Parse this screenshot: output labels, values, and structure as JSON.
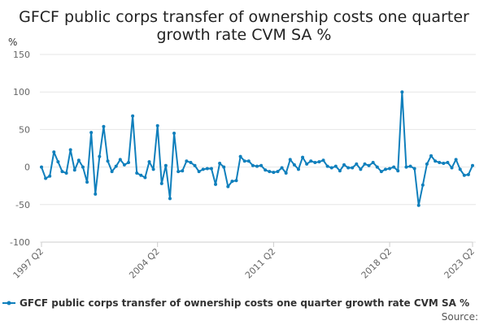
{
  "chart_data": {
    "type": "line",
    "title_lines": [
      "GFCF public corps transfer of ownership costs one quarter",
      "growth rate CVM SA %"
    ],
    "ylabel": "%",
    "ylim": [
      -100,
      150
    ],
    "yticks": [
      -100,
      -50,
      0,
      50,
      100,
      150
    ],
    "x_tick_labels": [
      {
        "label": "1997 Q2",
        "index": 0
      },
      {
        "label": "2004 Q2",
        "index": 28
      },
      {
        "label": "2011 Q2",
        "index": 56
      },
      {
        "label": "2018 Q2",
        "index": 84
      },
      {
        "label": "2023 Q2",
        "index": 104
      }
    ],
    "grid": true,
    "legend_position": "bottom",
    "series": [
      {
        "name": "GFCF public corps transfer of ownership costs one quarter growth rate CVM SA %",
        "color": "#0f7fbc",
        "x": [
          "1997 Q2",
          "1997 Q3",
          "1997 Q4",
          "1998 Q1",
          "1998 Q2",
          "1998 Q3",
          "1998 Q4",
          "1999 Q1",
          "1999 Q2",
          "1999 Q3",
          "1999 Q4",
          "2000 Q1",
          "2000 Q2",
          "2000 Q3",
          "2000 Q4",
          "2001 Q1",
          "2001 Q2",
          "2001 Q3",
          "2001 Q4",
          "2002 Q1",
          "2002 Q2",
          "2002 Q3",
          "2002 Q4",
          "2003 Q1",
          "2003 Q2",
          "2003 Q3",
          "2003 Q4",
          "2004 Q1",
          "2004 Q2",
          "2004 Q3",
          "2004 Q4",
          "2005 Q1",
          "2005 Q2",
          "2005 Q3",
          "2005 Q4",
          "2006 Q1",
          "2006 Q2",
          "2006 Q3",
          "2006 Q4",
          "2007 Q1",
          "2007 Q2",
          "2007 Q3",
          "2007 Q4",
          "2008 Q1",
          "2008 Q2",
          "2008 Q3",
          "2008 Q4",
          "2009 Q1",
          "2009 Q2",
          "2009 Q3",
          "2009 Q4",
          "2010 Q1",
          "2010 Q2",
          "2010 Q3",
          "2010 Q4",
          "2011 Q1",
          "2011 Q2",
          "2011 Q3",
          "2011 Q4",
          "2012 Q1",
          "2012 Q2",
          "2012 Q3",
          "2012 Q4",
          "2013 Q1",
          "2013 Q2",
          "2013 Q3",
          "2013 Q4",
          "2014 Q1",
          "2014 Q2",
          "2014 Q3",
          "2014 Q4",
          "2015 Q1",
          "2015 Q2",
          "2015 Q3",
          "2015 Q4",
          "2016 Q1",
          "2016 Q2",
          "2016 Q3",
          "2016 Q4",
          "2017 Q1",
          "2017 Q2",
          "2017 Q3",
          "2017 Q4",
          "2018 Q1",
          "2018 Q2",
          "2018 Q3",
          "2018 Q4",
          "2019 Q1",
          "2019 Q2",
          "2019 Q3",
          "2019 Q4",
          "2020 Q1",
          "2020 Q2",
          "2020 Q3",
          "2020 Q4",
          "2021 Q1",
          "2021 Q2",
          "2021 Q3",
          "2021 Q4",
          "2022 Q1",
          "2022 Q2",
          "2022 Q3",
          "2022 Q4",
          "2023 Q1",
          "2023 Q2"
        ],
        "values": [
          0,
          -15,
          -12,
          20,
          7,
          -6,
          -8,
          23,
          -4,
          9,
          0,
          -20,
          46,
          -36,
          14,
          54,
          8,
          -6,
          1,
          10,
          3,
          6,
          68,
          -8,
          -11,
          -14,
          7,
          -3,
          55,
          -22,
          2,
          -42,
          45,
          -6,
          -5,
          8,
          6,
          2,
          -6,
          -3,
          -2,
          -2,
          -23,
          5,
          0,
          -26,
          -19,
          -18,
          14,
          8,
          8,
          2,
          1,
          2,
          -4,
          -6,
          -7,
          -6,
          -1,
          -8,
          10,
          3,
          -3,
          13,
          4,
          8,
          6,
          7,
          9,
          1,
          -1,
          1,
          -5,
          3,
          -1,
          -1,
          4,
          -3,
          4,
          2,
          6,
          0,
          -6,
          -3,
          -2,
          0,
          -5,
          100,
          0,
          1,
          -2,
          -51,
          -24,
          4,
          15,
          8,
          6,
          5,
          6,
          -1,
          10,
          -3,
          -11,
          -10,
          2
        ]
      }
    ],
    "source_label": "Source:"
  }
}
